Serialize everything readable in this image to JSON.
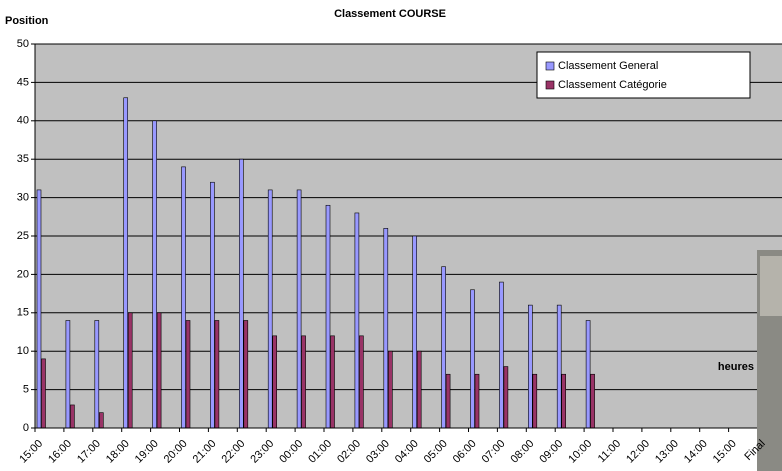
{
  "chart_data": {
    "type": "bar",
    "title": "Classement COURSE",
    "y_label": "Position",
    "x_label": "heures",
    "categories": [
      "15:00",
      "16:00",
      "17:00",
      "18:00",
      "19:00",
      "20:00",
      "21:00",
      "22:00",
      "23:00",
      "00:00",
      "01:00",
      "02:00",
      "03:00",
      "04:00",
      "05:00",
      "06:00",
      "07:00",
      "08:00",
      "09:00",
      "10:00",
      "11:00",
      "12:00",
      "13:00",
      "14:00",
      "15:00",
      "Final"
    ],
    "series": [
      {
        "name": "Classement General",
        "color": "#9999ff",
        "values": [
          31,
          14,
          14,
          43,
          40,
          34,
          32,
          35,
          31,
          31,
          29,
          28,
          26,
          25,
          21,
          18,
          19,
          16,
          16,
          14,
          null,
          null,
          null,
          null,
          null,
          null
        ]
      },
      {
        "name": "Classement Catégorie",
        "color": "#993366",
        "values": [
          9,
          3,
          2,
          15,
          15,
          14,
          14,
          14,
          12,
          12,
          12,
          12,
          10,
          10,
          7,
          7,
          8,
          7,
          7,
          7,
          null,
          null,
          null,
          null,
          null,
          null
        ]
      }
    ],
    "ylim": [
      0,
      50
    ],
    "yticks": [
      0,
      5,
      10,
      15,
      20,
      25,
      30,
      35,
      40,
      45,
      50
    ],
    "grid": true,
    "legend": "top-right"
  }
}
